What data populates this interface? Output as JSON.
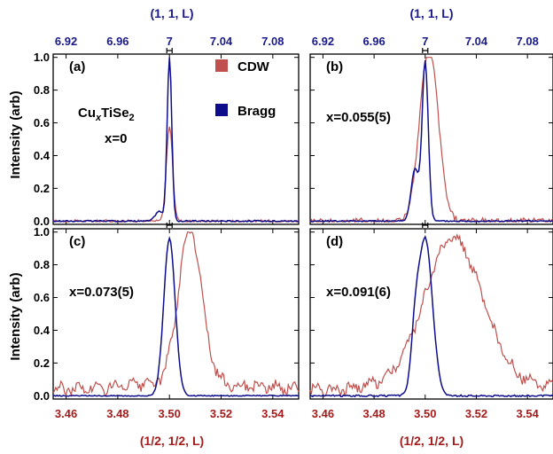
{
  "chart_data": {
    "type": "line",
    "top_axis_label": "(1, 1, L)",
    "bottom_axis_label": "(1/2, 1/2, L)",
    "ylabel": "Intensity (arb)",
    "top_ticks": [
      "6.92",
      "6.96",
      "7",
      "7.04",
      "7.08"
    ],
    "bottom_ticks": [
      "3.46",
      "3.48",
      "3.50",
      "3.52",
      "3.54"
    ],
    "y_ticks": [
      "0.0",
      "0.2",
      "0.4",
      "0.6",
      "0.8",
      "1.0"
    ],
    "xlim_bottom": [
      3.455,
      3.55
    ],
    "xlim_top": [
      6.91,
      7.1
    ],
    "ylim": [
      -0.02,
      1.02
    ],
    "legend": [
      {
        "name": "CDW",
        "color": "#c0504d"
      },
      {
        "name": "Bragg",
        "color": "#0d0d8c"
      }
    ],
    "formula": {
      "prefix": "Cu",
      "sub": "x",
      "suffix": "TiSe",
      "sub2": "2"
    },
    "panels": [
      {
        "label": "(a)",
        "annotation": "x=0",
        "cdw": {
          "center": 3.5,
          "amp": 0.58,
          "width": 0.0012,
          "tail": 0.0,
          "tailw": 0.0,
          "noise": 0.008
        },
        "bragg": {
          "center": 3.5,
          "amp": 1.0,
          "width": 0.0009,
          "shoulder": 0.06,
          "noise": 0.004
        }
      },
      {
        "label": "(b)",
        "annotation": "x=0.055(5)",
        "cdw": {
          "center": 3.5015,
          "amp": 0.92,
          "width": 0.0035,
          "tail": 0.15,
          "tailw": 0.004,
          "noise": 0.02
        },
        "bragg": {
          "center": 3.5,
          "amp": 0.97,
          "width": 0.0012,
          "shoulder": 0.32,
          "noise": 0.004
        }
      },
      {
        "label": "(c)",
        "annotation": "x=0.073(5)",
        "cdw": {
          "center": 3.508,
          "amp": 0.94,
          "width": 0.0045,
          "tail": 0.04,
          "tailw": 0.02,
          "noise": 0.03
        },
        "bragg": {
          "center": 3.5,
          "amp": 0.96,
          "width": 0.0022,
          "shoulder": 0.0,
          "noise": 0.003
        }
      },
      {
        "label": "(d)",
        "annotation": "x=0.091(6)",
        "cdw": {
          "center": 3.511,
          "amp": 0.84,
          "width": 0.011,
          "tail": 0.08,
          "tailw": 0.02,
          "noise": 0.03
        },
        "bragg": {
          "center": 3.5,
          "amp": 0.96,
          "width": 0.0028,
          "shoulder": 0.25,
          "noise": 0.005
        }
      }
    ]
  }
}
